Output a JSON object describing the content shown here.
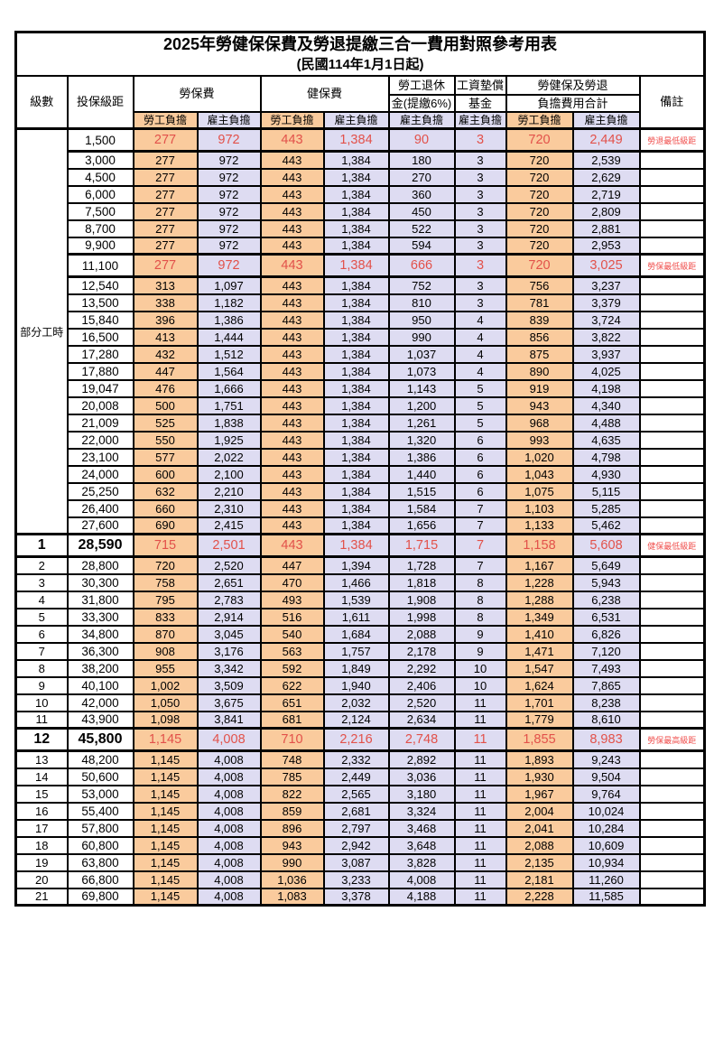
{
  "title": "2025年勞健保保費及勞退提繳三合一費用對照參考用表",
  "subtitle": "(民國114年1月1日起)",
  "colors": {
    "employee_column_bg": "#FACB9D",
    "employer_column_bg": "#DEDCF2",
    "highlight_text": "#E2514A",
    "remark_text": "#F0504E",
    "border": "#000000"
  },
  "columns": {
    "level": "級數",
    "bracket": "投保級距",
    "labor_insurance": "勞保費",
    "health_insurance": "健保費",
    "pension_line1": "勞工退休",
    "pension_line2": "金(提繳6%)",
    "wage_fund_line1": "工資墊償",
    "wage_fund_line2": "基金",
    "total_line1": "勞健保及勞退",
    "total_line2": "負擔費用合計",
    "remark": "備註",
    "employee": "勞工負擔",
    "employer": "雇主負擔"
  },
  "table": {
    "part_time_label": "部分工時",
    "part_time_rowspan": 23,
    "rows": [
      {
        "level": "",
        "bracket": "1,500",
        "values": [
          "277",
          "972",
          "443",
          "1,384",
          "90",
          "3",
          "720",
          "2,449"
        ],
        "remark": "勞退最低級距",
        "highlight": true,
        "tall": true,
        "big": false
      },
      {
        "level": "",
        "bracket": "3,000",
        "values": [
          "277",
          "972",
          "443",
          "1,384",
          "180",
          "3",
          "720",
          "2,539"
        ],
        "remark": "",
        "highlight": false,
        "tall": false,
        "big": false
      },
      {
        "level": "",
        "bracket": "4,500",
        "values": [
          "277",
          "972",
          "443",
          "1,384",
          "270",
          "3",
          "720",
          "2,629"
        ],
        "remark": "",
        "highlight": false,
        "tall": false,
        "big": false
      },
      {
        "level": "",
        "bracket": "6,000",
        "values": [
          "277",
          "972",
          "443",
          "1,384",
          "360",
          "3",
          "720",
          "2,719"
        ],
        "remark": "",
        "highlight": false,
        "tall": false,
        "big": false
      },
      {
        "level": "",
        "bracket": "7,500",
        "values": [
          "277",
          "972",
          "443",
          "1,384",
          "450",
          "3",
          "720",
          "2,809"
        ],
        "remark": "",
        "highlight": false,
        "tall": false,
        "big": false
      },
      {
        "level": "",
        "bracket": "8,700",
        "values": [
          "277",
          "972",
          "443",
          "1,384",
          "522",
          "3",
          "720",
          "2,881"
        ],
        "remark": "",
        "highlight": false,
        "tall": false,
        "big": false
      },
      {
        "level": "",
        "bracket": "9,900",
        "values": [
          "277",
          "972",
          "443",
          "1,384",
          "594",
          "3",
          "720",
          "2,953"
        ],
        "remark": "",
        "highlight": false,
        "tall": false,
        "big": false
      },
      {
        "level": "",
        "bracket": "11,100",
        "values": [
          "277",
          "972",
          "443",
          "1,384",
          "666",
          "3",
          "720",
          "3,025"
        ],
        "remark": "勞保最低級距",
        "highlight": true,
        "tall": true,
        "big": false
      },
      {
        "level": "",
        "bracket": "12,540",
        "values": [
          "313",
          "1,097",
          "443",
          "1,384",
          "752",
          "3",
          "756",
          "3,237"
        ],
        "remark": "",
        "highlight": false,
        "tall": false,
        "big": false
      },
      {
        "level": "",
        "bracket": "13,500",
        "values": [
          "338",
          "1,182",
          "443",
          "1,384",
          "810",
          "3",
          "781",
          "3,379"
        ],
        "remark": "",
        "highlight": false,
        "tall": false,
        "big": false
      },
      {
        "level": "",
        "bracket": "15,840",
        "values": [
          "396",
          "1,386",
          "443",
          "1,384",
          "950",
          "4",
          "839",
          "3,724"
        ],
        "remark": "",
        "highlight": false,
        "tall": false,
        "big": false
      },
      {
        "level": "",
        "bracket": "16,500",
        "values": [
          "413",
          "1,444",
          "443",
          "1,384",
          "990",
          "4",
          "856",
          "3,822"
        ],
        "remark": "",
        "highlight": false,
        "tall": false,
        "big": false
      },
      {
        "level": "",
        "bracket": "17,280",
        "values": [
          "432",
          "1,512",
          "443",
          "1,384",
          "1,037",
          "4",
          "875",
          "3,937"
        ],
        "remark": "",
        "highlight": false,
        "tall": false,
        "big": false
      },
      {
        "level": "",
        "bracket": "17,880",
        "values": [
          "447",
          "1,564",
          "443",
          "1,384",
          "1,073",
          "4",
          "890",
          "4,025"
        ],
        "remark": "",
        "highlight": false,
        "tall": false,
        "big": false
      },
      {
        "level": "",
        "bracket": "19,047",
        "values": [
          "476",
          "1,666",
          "443",
          "1,384",
          "1,143",
          "5",
          "919",
          "4,198"
        ],
        "remark": "",
        "highlight": false,
        "tall": false,
        "big": false
      },
      {
        "level": "",
        "bracket": "20,008",
        "values": [
          "500",
          "1,751",
          "443",
          "1,384",
          "1,200",
          "5",
          "943",
          "4,340"
        ],
        "remark": "",
        "highlight": false,
        "tall": false,
        "big": false
      },
      {
        "level": "",
        "bracket": "21,009",
        "values": [
          "525",
          "1,838",
          "443",
          "1,384",
          "1,261",
          "5",
          "968",
          "4,488"
        ],
        "remark": "",
        "highlight": false,
        "tall": false,
        "big": false
      },
      {
        "level": "",
        "bracket": "22,000",
        "values": [
          "550",
          "1,925",
          "443",
          "1,384",
          "1,320",
          "6",
          "993",
          "4,635"
        ],
        "remark": "",
        "highlight": false,
        "tall": false,
        "big": false
      },
      {
        "level": "",
        "bracket": "23,100",
        "values": [
          "577",
          "2,022",
          "443",
          "1,384",
          "1,386",
          "6",
          "1,020",
          "4,798"
        ],
        "remark": "",
        "highlight": false,
        "tall": false,
        "big": false
      },
      {
        "level": "",
        "bracket": "24,000",
        "values": [
          "600",
          "2,100",
          "443",
          "1,384",
          "1,440",
          "6",
          "1,043",
          "4,930"
        ],
        "remark": "",
        "highlight": false,
        "tall": false,
        "big": false
      },
      {
        "level": "",
        "bracket": "25,250",
        "values": [
          "632",
          "2,210",
          "443",
          "1,384",
          "1,515",
          "6",
          "1,075",
          "5,115"
        ],
        "remark": "",
        "highlight": false,
        "tall": false,
        "big": false
      },
      {
        "level": "",
        "bracket": "26,400",
        "values": [
          "660",
          "2,310",
          "443",
          "1,384",
          "1,584",
          "7",
          "1,103",
          "5,285"
        ],
        "remark": "",
        "highlight": false,
        "tall": false,
        "big": false
      },
      {
        "level": "",
        "bracket": "27,600",
        "values": [
          "690",
          "2,415",
          "443",
          "1,384",
          "1,656",
          "7",
          "1,133",
          "5,462"
        ],
        "remark": "",
        "highlight": false,
        "tall": false,
        "big": false
      },
      {
        "level": "1",
        "bracket": "28,590",
        "values": [
          "715",
          "2,501",
          "443",
          "1,384",
          "1,715",
          "7",
          "1,158",
          "5,608"
        ],
        "remark": "健保最低級距",
        "highlight": true,
        "tall": true,
        "big": true
      },
      {
        "level": "2",
        "bracket": "28,800",
        "values": [
          "720",
          "2,520",
          "447",
          "1,394",
          "1,728",
          "7",
          "1,167",
          "5,649"
        ],
        "remark": "",
        "highlight": false,
        "tall": false,
        "big": false
      },
      {
        "level": "3",
        "bracket": "30,300",
        "values": [
          "758",
          "2,651",
          "470",
          "1,466",
          "1,818",
          "8",
          "1,228",
          "5,943"
        ],
        "remark": "",
        "highlight": false,
        "tall": false,
        "big": false
      },
      {
        "level": "4",
        "bracket": "31,800",
        "values": [
          "795",
          "2,783",
          "493",
          "1,539",
          "1,908",
          "8",
          "1,288",
          "6,238"
        ],
        "remark": "",
        "highlight": false,
        "tall": false,
        "big": false
      },
      {
        "level": "5",
        "bracket": "33,300",
        "values": [
          "833",
          "2,914",
          "516",
          "1,611",
          "1,998",
          "8",
          "1,349",
          "6,531"
        ],
        "remark": "",
        "highlight": false,
        "tall": false,
        "big": false
      },
      {
        "level": "6",
        "bracket": "34,800",
        "values": [
          "870",
          "3,045",
          "540",
          "1,684",
          "2,088",
          "9",
          "1,410",
          "6,826"
        ],
        "remark": "",
        "highlight": false,
        "tall": false,
        "big": false
      },
      {
        "level": "7",
        "bracket": "36,300",
        "values": [
          "908",
          "3,176",
          "563",
          "1,757",
          "2,178",
          "9",
          "1,471",
          "7,120"
        ],
        "remark": "",
        "highlight": false,
        "tall": false,
        "big": false
      },
      {
        "level": "8",
        "bracket": "38,200",
        "values": [
          "955",
          "3,342",
          "592",
          "1,849",
          "2,292",
          "10",
          "1,547",
          "7,493"
        ],
        "remark": "",
        "highlight": false,
        "tall": false,
        "big": false
      },
      {
        "level": "9",
        "bracket": "40,100",
        "values": [
          "1,002",
          "3,509",
          "622",
          "1,940",
          "2,406",
          "10",
          "1,624",
          "7,865"
        ],
        "remark": "",
        "highlight": false,
        "tall": false,
        "big": false
      },
      {
        "level": "10",
        "bracket": "42,000",
        "values": [
          "1,050",
          "3,675",
          "651",
          "2,032",
          "2,520",
          "11",
          "1,701",
          "8,238"
        ],
        "remark": "",
        "highlight": false,
        "tall": false,
        "big": false
      },
      {
        "level": "11",
        "bracket": "43,900",
        "values": [
          "1,098",
          "3,841",
          "681",
          "2,124",
          "2,634",
          "11",
          "1,779",
          "8,610"
        ],
        "remark": "",
        "highlight": false,
        "tall": false,
        "big": false
      },
      {
        "level": "12",
        "bracket": "45,800",
        "values": [
          "1,145",
          "4,008",
          "710",
          "2,216",
          "2,748",
          "11",
          "1,855",
          "8,983"
        ],
        "remark": "勞保最高級距",
        "highlight": true,
        "tall": true,
        "big": true
      },
      {
        "level": "13",
        "bracket": "48,200",
        "values": [
          "1,145",
          "4,008",
          "748",
          "2,332",
          "2,892",
          "11",
          "1,893",
          "9,243"
        ],
        "remark": "",
        "highlight": false,
        "tall": false,
        "big": false
      },
      {
        "level": "14",
        "bracket": "50,600",
        "values": [
          "1,145",
          "4,008",
          "785",
          "2,449",
          "3,036",
          "11",
          "1,930",
          "9,504"
        ],
        "remark": "",
        "highlight": false,
        "tall": false,
        "big": false
      },
      {
        "level": "15",
        "bracket": "53,000",
        "values": [
          "1,145",
          "4,008",
          "822",
          "2,565",
          "3,180",
          "11",
          "1,967",
          "9,764"
        ],
        "remark": "",
        "highlight": false,
        "tall": false,
        "big": false
      },
      {
        "level": "16",
        "bracket": "55,400",
        "values": [
          "1,145",
          "4,008",
          "859",
          "2,681",
          "3,324",
          "11",
          "2,004",
          "10,024"
        ],
        "remark": "",
        "highlight": false,
        "tall": false,
        "big": false
      },
      {
        "level": "17",
        "bracket": "57,800",
        "values": [
          "1,145",
          "4,008",
          "896",
          "2,797",
          "3,468",
          "11",
          "2,041",
          "10,284"
        ],
        "remark": "",
        "highlight": false,
        "tall": false,
        "big": false
      },
      {
        "level": "18",
        "bracket": "60,800",
        "values": [
          "1,145",
          "4,008",
          "943",
          "2,942",
          "3,648",
          "11",
          "2,088",
          "10,609"
        ],
        "remark": "",
        "highlight": false,
        "tall": false,
        "big": false
      },
      {
        "level": "19",
        "bracket": "63,800",
        "values": [
          "1,145",
          "4,008",
          "990",
          "3,087",
          "3,828",
          "11",
          "2,135",
          "10,934"
        ],
        "remark": "",
        "highlight": false,
        "tall": false,
        "big": false
      },
      {
        "level": "20",
        "bracket": "66,800",
        "values": [
          "1,145",
          "4,008",
          "1,036",
          "3,233",
          "4,008",
          "11",
          "2,181",
          "11,260"
        ],
        "remark": "",
        "highlight": false,
        "tall": false,
        "big": false
      },
      {
        "level": "21",
        "bracket": "69,800",
        "values": [
          "1,145",
          "4,008",
          "1,083",
          "3,378",
          "4,188",
          "11",
          "2,228",
          "11,585"
        ],
        "remark": "",
        "highlight": false,
        "tall": false,
        "big": false
      }
    ]
  }
}
